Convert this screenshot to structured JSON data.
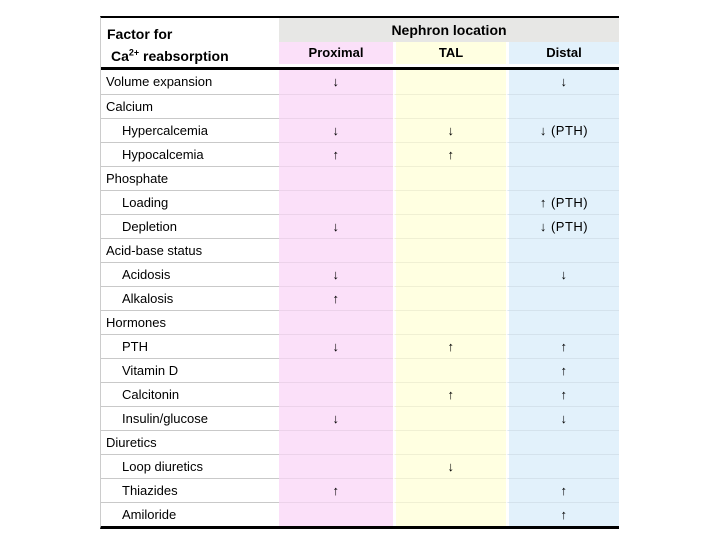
{
  "table": {
    "header": {
      "factor_line1": "Factor for",
      "factor_line2_prefix": "Ca",
      "factor_line2_sup": "2+",
      "factor_line2_suffix": " reabsorption",
      "group_label": "Nephron location",
      "columns": [
        "Proximal",
        "TAL",
        "Distal"
      ]
    },
    "colors": {
      "proximal_bg": "#fbe0f9",
      "tal_bg": "#ffffe1",
      "distal_bg": "#e2f1fb",
      "group_bg": "#e7e7e5",
      "border": "#000000"
    },
    "arrow_up": "↑",
    "arrow_down": "↓",
    "rows": [
      {
        "label": "Volume expansion",
        "indent": false,
        "cells": [
          "↓",
          "",
          "↓"
        ]
      },
      {
        "label": "Calcium",
        "indent": false,
        "cells": [
          "",
          "",
          ""
        ]
      },
      {
        "label": "Hypercalcemia",
        "indent": true,
        "cells": [
          "↓",
          "↓",
          "↓ (PTH)"
        ]
      },
      {
        "label": "Hypocalcemia",
        "indent": true,
        "cells": [
          "↑",
          "↑",
          ""
        ]
      },
      {
        "label": "Phosphate",
        "indent": false,
        "cells": [
          "",
          "",
          ""
        ]
      },
      {
        "label": "Loading",
        "indent": true,
        "cells": [
          "",
          "",
          "↑ (PTH)"
        ]
      },
      {
        "label": "Depletion",
        "indent": true,
        "cells": [
          "↓",
          "",
          "↓ (PTH)"
        ]
      },
      {
        "label": "Acid-base status",
        "indent": false,
        "cells": [
          "",
          "",
          ""
        ]
      },
      {
        "label": "Acidosis",
        "indent": true,
        "cells": [
          "↓",
          "",
          "↓"
        ]
      },
      {
        "label": "Alkalosis",
        "indent": true,
        "cells": [
          "↑",
          "",
          ""
        ]
      },
      {
        "label": "Hormones",
        "indent": false,
        "cells": [
          "",
          "",
          ""
        ]
      },
      {
        "label": "PTH",
        "indent": true,
        "cells": [
          "↓",
          "↑",
          "↑"
        ]
      },
      {
        "label": "Vitamin D",
        "indent": true,
        "cells": [
          "",
          "",
          "↑"
        ]
      },
      {
        "label": "Calcitonin",
        "indent": true,
        "cells": [
          "",
          "↑",
          "↑"
        ]
      },
      {
        "label": "Insulin/glucose",
        "indent": true,
        "cells": [
          "↓",
          "",
          "↓"
        ]
      },
      {
        "label": "Diuretics",
        "indent": false,
        "cells": [
          "",
          "",
          ""
        ]
      },
      {
        "label": "Loop diuretics",
        "indent": true,
        "cells": [
          "",
          "↓",
          ""
        ]
      },
      {
        "label": "Thiazides",
        "indent": true,
        "cells": [
          "↑",
          "",
          "↑"
        ]
      },
      {
        "label": "Amiloride",
        "indent": true,
        "cells": [
          "",
          "",
          "↑"
        ]
      }
    ]
  }
}
